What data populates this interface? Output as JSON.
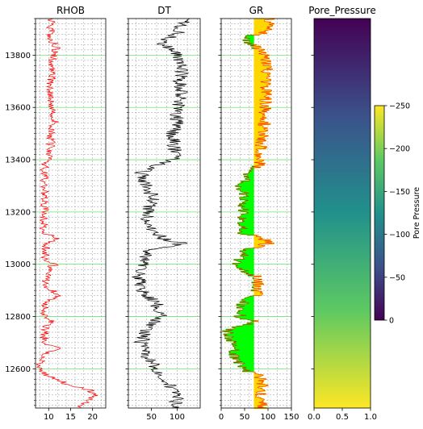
{
  "chart_data": {
    "type": "line",
    "depth": {
      "ylim": [
        13940,
        12450
      ],
      "ticks": [
        12600,
        12800,
        13000,
        13200,
        13400,
        13600,
        13800
      ],
      "tick_labels": [
        "12600",
        "12800",
        "13000",
        "13200",
        "13400",
        "13600",
        "13800"
      ]
    },
    "tracks": [
      {
        "title": "RHOB",
        "color": "#ff0000",
        "xlim": [
          7,
          23
        ],
        "xticks": [
          10,
          15,
          20
        ],
        "xtick_labels": [
          "10",
          "15",
          "20"
        ],
        "grid_x": [
          8,
          10,
          12,
          14,
          16,
          18,
          20,
          22
        ],
        "profile": [
          [
            12450,
            17
          ],
          [
            12480,
            19
          ],
          [
            12500,
            21
          ],
          [
            12520,
            19
          ],
          [
            12540,
            14
          ],
          [
            12560,
            12
          ],
          [
            12580,
            9
          ],
          [
            12600,
            8
          ],
          [
            12650,
            8.5
          ],
          [
            12680,
            12
          ],
          [
            12700,
            9
          ],
          [
            12750,
            9
          ],
          [
            12790,
            11
          ],
          [
            12800,
            9
          ],
          [
            12850,
            9.5
          ],
          [
            12880,
            12
          ],
          [
            12900,
            11
          ],
          [
            12920,
            9
          ],
          [
            12990,
            10
          ],
          [
            13000,
            12
          ],
          [
            13010,
            9
          ],
          [
            13080,
            9.5
          ],
          [
            13100,
            12
          ],
          [
            13120,
            9
          ],
          [
            13380,
            9
          ],
          [
            13400,
            10.5
          ],
          [
            13500,
            10.5
          ],
          [
            13550,
            11.5
          ],
          [
            13600,
            10.5
          ],
          [
            13700,
            10.5
          ],
          [
            13800,
            11
          ],
          [
            13830,
            12
          ],
          [
            13860,
            10.5
          ],
          [
            13940,
            10.5
          ]
        ]
      },
      {
        "title": "DT",
        "color": "#000000",
        "xlim": [
          5,
          145
        ],
        "xticks": [
          50,
          100
        ],
        "xtick_labels": [
          "50",
          "100"
        ],
        "grid_x": [
          20,
          40,
          60,
          80,
          100,
          120,
          140
        ],
        "profile": [
          [
            12450,
            95
          ],
          [
            12500,
            100
          ],
          [
            12550,
            80
          ],
          [
            12600,
            60
          ],
          [
            12650,
            40
          ],
          [
            12700,
            30
          ],
          [
            12750,
            40
          ],
          [
            12800,
            70
          ],
          [
            12850,
            60
          ],
          [
            12900,
            30
          ],
          [
            12950,
            25
          ],
          [
            13000,
            35
          ],
          [
            13050,
            40
          ],
          [
            13080,
            110
          ],
          [
            13100,
            70
          ],
          [
            13150,
            45
          ],
          [
            13200,
            40
          ],
          [
            13250,
            55
          ],
          [
            13300,
            40
          ],
          [
            13350,
            30
          ],
          [
            13380,
            60
          ],
          [
            13400,
            95
          ],
          [
            13450,
            95
          ],
          [
            13500,
            92
          ],
          [
            13550,
            100
          ],
          [
            13600,
            100
          ],
          [
            13650,
            110
          ],
          [
            13700,
            105
          ],
          [
            13750,
            110
          ],
          [
            13800,
            100
          ],
          [
            13850,
            70
          ],
          [
            13880,
            100
          ],
          [
            13940,
            115
          ]
        ]
      },
      {
        "title": "GR",
        "line_color": "#ff0000",
        "xlim": [
          0,
          150
        ],
        "xticks": [
          0,
          50,
          100,
          150
        ],
        "xtick_labels": [
          "0",
          "50",
          "100",
          "150"
        ],
        "grid_x": [
          0,
          20,
          40,
          60,
          80,
          100,
          120,
          140
        ],
        "cutoff": 70,
        "fill_above_color": "#ffd700",
        "fill_below_color": "#00ff00",
        "profile": [
          [
            12450,
            85
          ],
          [
            12500,
            85
          ],
          [
            12550,
            90
          ],
          [
            12580,
            75
          ],
          [
            12600,
            45
          ],
          [
            12650,
            30
          ],
          [
            12700,
            20
          ],
          [
            12750,
            15
          ],
          [
            12780,
            75
          ],
          [
            12800,
            40
          ],
          [
            12850,
            45
          ],
          [
            12870,
            60
          ],
          [
            12880,
            75
          ],
          [
            12950,
            80
          ],
          [
            12980,
            40
          ],
          [
            13000,
            35
          ],
          [
            13050,
            50
          ],
          [
            13080,
            100
          ],
          [
            13100,
            90
          ],
          [
            13120,
            45
          ],
          [
            13200,
            45
          ],
          [
            13250,
            50
          ],
          [
            13300,
            40
          ],
          [
            13350,
            60
          ],
          [
            13380,
            80
          ],
          [
            13450,
            85
          ],
          [
            13500,
            90
          ],
          [
            13600,
            95
          ],
          [
            13700,
            95
          ],
          [
            13750,
            100
          ],
          [
            13800,
            95
          ],
          [
            13850,
            60
          ],
          [
            13870,
            55
          ],
          [
            13890,
            100
          ],
          [
            13940,
            105
          ]
        ]
      }
    ],
    "panel": {
      "title": "Pore_Pressure",
      "xlim": [
        0.0,
        1.0
      ],
      "xticks": [
        0.0,
        0.5,
        1.0
      ],
      "xtick_labels": [
        "0.0",
        "0.5",
        "1.0"
      ],
      "gradient_top": -250,
      "gradient_bottom": 0
    },
    "colorbar": {
      "label": "Pore Pressure",
      "colormap": "viridis",
      "range": [
        -250,
        0
      ],
      "ticks": [
        -250,
        -200,
        -150,
        -100,
        -50,
        0
      ],
      "tick_labels": [
        "−250",
        "−200",
        "−150",
        "−100",
        "−50",
        "0"
      ]
    },
    "colors": {
      "grid_major": "#6fe36f",
      "grid_minor": "#999999"
    }
  }
}
